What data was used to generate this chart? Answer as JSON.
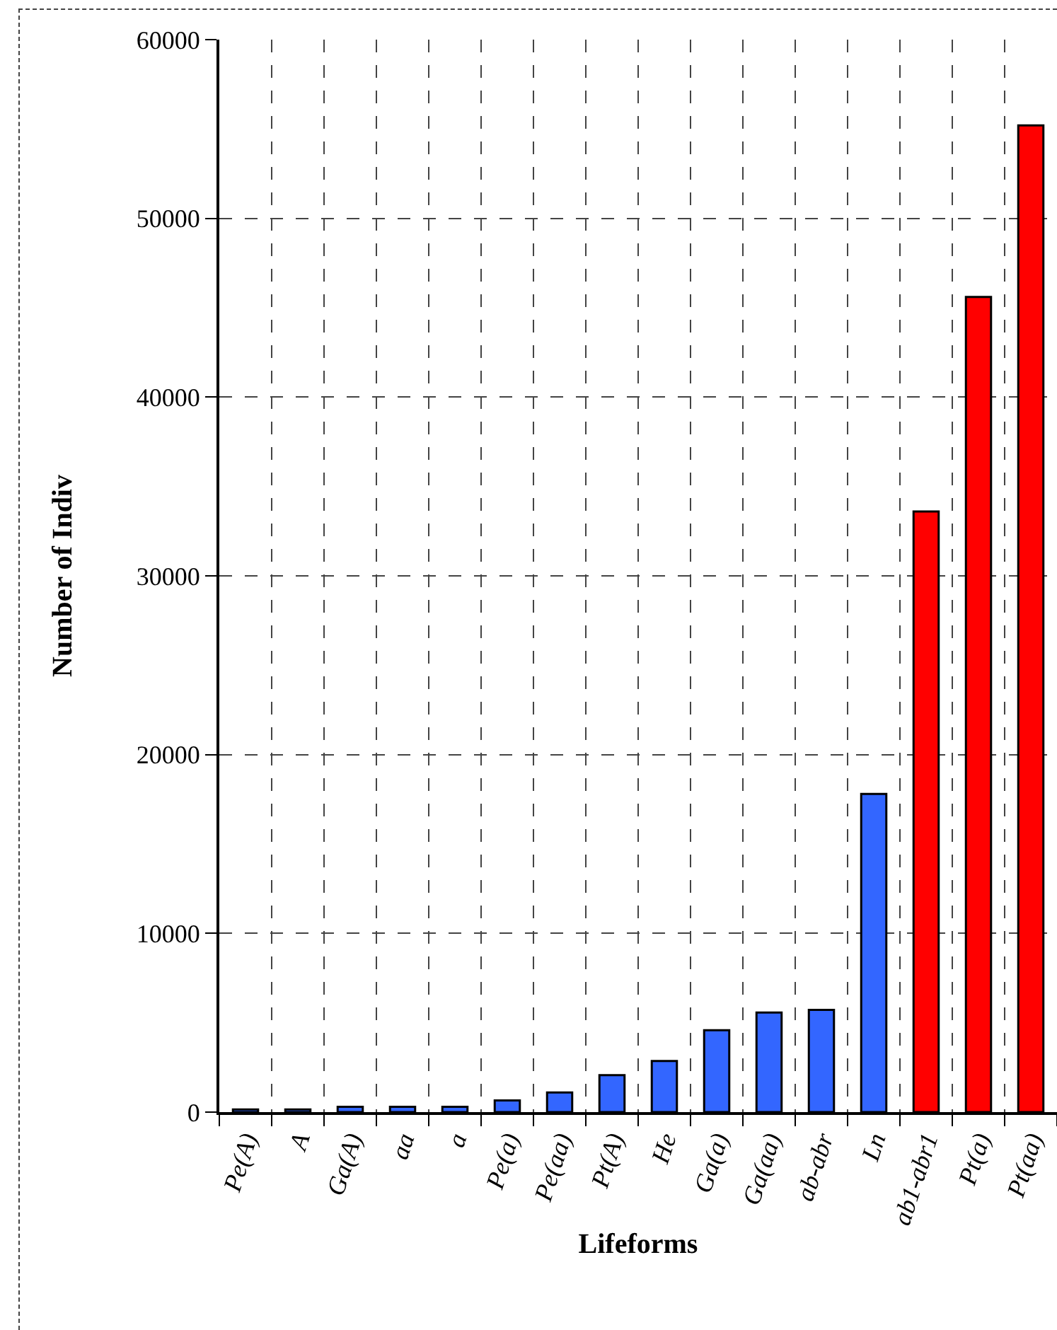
{
  "chart_data": {
    "type": "bar",
    "xlabel": "Lifeforms",
    "ylabel": "Number of Indiv",
    "categories": [
      "Pe(A)",
      "A",
      "Ga(A)",
      "aa",
      "a",
      "Pe(a)",
      "Pe(aa)",
      "Pt(A)",
      "He",
      "Ga(a)",
      "Ga(aa)",
      "ab-abr",
      "Ln",
      "ab1-abr1",
      "Pt(a)",
      "Pt(aa)"
    ],
    "values": [
      150,
      150,
      300,
      300,
      300,
      650,
      1100,
      2070,
      2860,
      4580,
      5570,
      5720,
      17800,
      33600,
      45600,
      55200
    ],
    "colors": [
      "#3366ff",
      "#3366ff",
      "#3366ff",
      "#3366ff",
      "#3366ff",
      "#3366ff",
      "#3366ff",
      "#3366ff",
      "#3366ff",
      "#3366ff",
      "#3366ff",
      "#3366ff",
      "#3366ff",
      "#ff0000",
      "#ff0000",
      "#ff0000"
    ],
    "ylim": [
      0,
      60000
    ],
    "yticks": [
      0,
      10000,
      20000,
      30000,
      40000,
      50000,
      60000
    ],
    "grid": true
  }
}
